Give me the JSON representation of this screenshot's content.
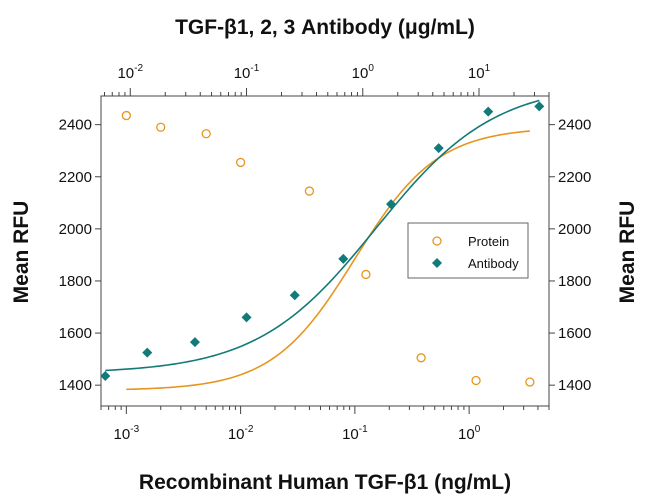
{
  "chart_data": {
    "type": "scatter",
    "title": "TGF-β1, 2, 3 Antibody (μg/mL)",
    "xlabel": "Recombinant Human TGF-β1 (ng/mL)",
    "ylabel_left": "Mean RFU",
    "ylabel_right": "Mean RFU",
    "x_scale": "log",
    "x2_scale": "log",
    "xlim": [
      0.0006,
      5
    ],
    "x2lim": [
      0.0056,
      40
    ],
    "ylim": [
      1320,
      2510
    ],
    "x_ticks": [
      {
        "value": 0.001,
        "base": "10",
        "exp": "-3"
      },
      {
        "value": 0.01,
        "base": "10",
        "exp": "-2"
      },
      {
        "value": 0.1,
        "base": "10",
        "exp": "-1"
      },
      {
        "value": 1,
        "base": "10",
        "exp": "0"
      }
    ],
    "x2_ticks": [
      {
        "value": 0.01,
        "base": "10",
        "exp": "-2"
      },
      {
        "value": 0.1,
        "base": "10",
        "exp": "-1"
      },
      {
        "value": 1,
        "base": "10",
        "exp": "0"
      },
      {
        "value": 10,
        "base": "10",
        "exp": "1"
      }
    ],
    "y_ticks": [
      "1400",
      "1600",
      "1800",
      "2000",
      "2200",
      "2400"
    ],
    "legend": {
      "position": "center-right",
      "entries": [
        "Protein",
        "Antibody"
      ]
    },
    "series": [
      {
        "name": "Protein",
        "axis": "bottom",
        "marker": "circle-open",
        "color": "#e8951e",
        "points": [
          {
            "x": 0.001,
            "y": 2435
          },
          {
            "x": 0.002,
            "y": 2390
          },
          {
            "x": 0.005,
            "y": 2365
          },
          {
            "x": 0.01,
            "y": 2255
          },
          {
            "x": 0.04,
            "y": 2145
          },
          {
            "x": 0.125,
            "y": 1825
          },
          {
            "x": 0.38,
            "y": 1505
          },
          {
            "x": 1.15,
            "y": 1418
          },
          {
            "x": 3.4,
            "y": 1412
          }
        ],
        "fit": {
          "bottom": 1380,
          "top": 2390,
          "ec50": 0.1,
          "hill": 1.2
        }
      },
      {
        "name": "Antibody",
        "axis": "top",
        "marker": "diamond-filled",
        "color": "#127a78",
        "points": [
          {
            "x": 0.0061,
            "y": 1435
          },
          {
            "x": 0.014,
            "y": 1525
          },
          {
            "x": 0.036,
            "y": 1565
          },
          {
            "x": 0.1,
            "y": 1660
          },
          {
            "x": 0.26,
            "y": 1745
          },
          {
            "x": 0.68,
            "y": 1885
          },
          {
            "x": 1.75,
            "y": 2095
          },
          {
            "x": 4.5,
            "y": 2310
          },
          {
            "x": 12,
            "y": 2450
          },
          {
            "x": 33,
            "y": 2470
          }
        ],
        "fit": {
          "bottom": 1445,
          "top": 2560,
          "ec50": 1.3,
          "hill": 0.85
        }
      }
    ]
  }
}
